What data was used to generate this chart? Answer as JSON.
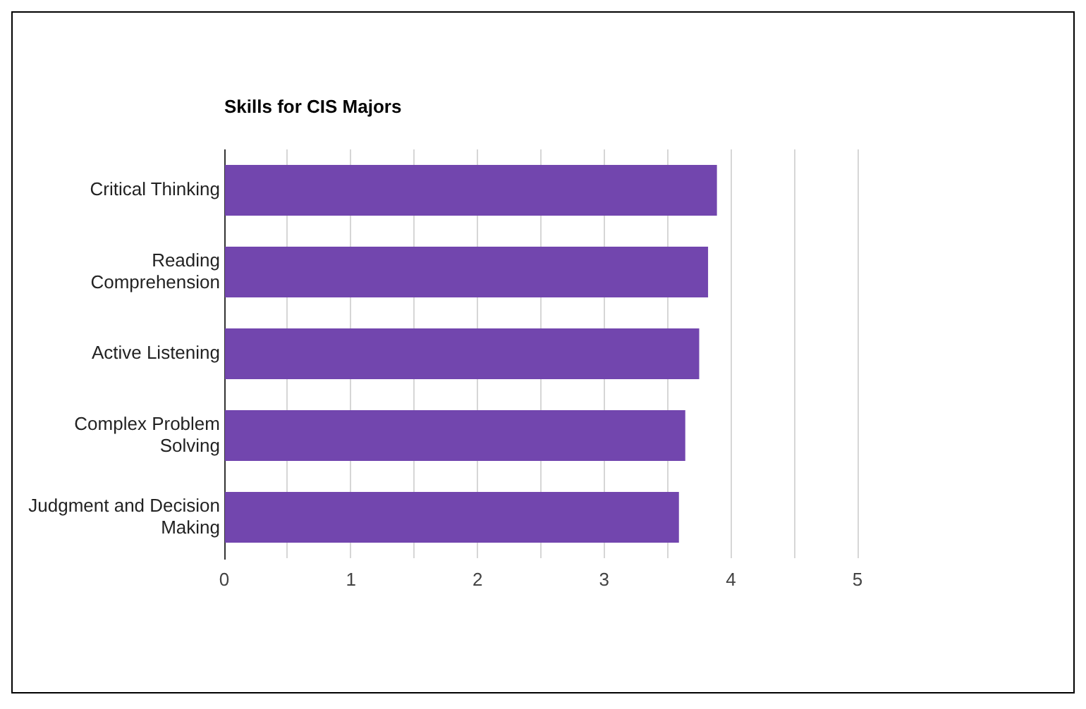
{
  "chart_data": {
    "type": "bar",
    "orientation": "horizontal",
    "title": "Skills for CIS Majors",
    "categories": [
      "Critical Thinking",
      "Reading Comprehension",
      "Active Listening",
      "Complex Problem Solving",
      "Judgment and Decision Making"
    ],
    "values": [
      3.89,
      3.82,
      3.75,
      3.64,
      3.59
    ],
    "color": "#7246ae",
    "xlim": [
      0,
      5
    ],
    "xticks": [
      0,
      {
        "value": 0.5,
        "label": null
      },
      1,
      {
        "value": 1.5,
        "label": null
      },
      2,
      {
        "value": 2.5,
        "label": null
      },
      3,
      {
        "value": 3.5,
        "label": null
      },
      4,
      {
        "value": 4.5,
        "label": null
      },
      5
    ],
    "grid": "x"
  }
}
